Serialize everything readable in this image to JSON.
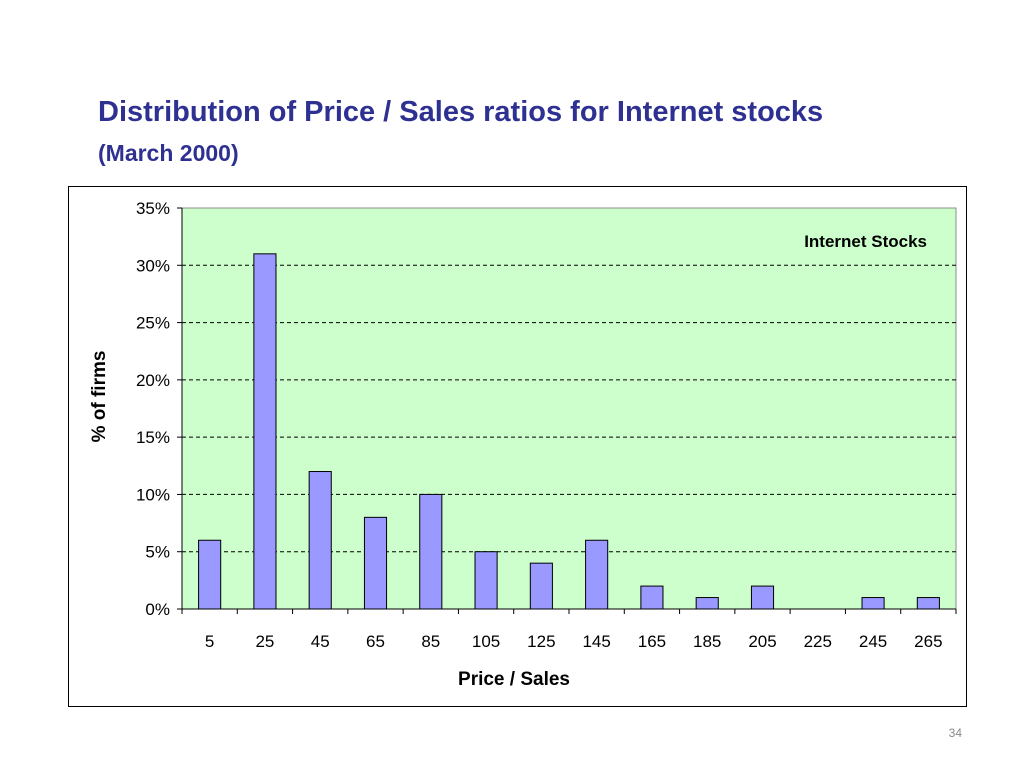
{
  "slide": {
    "title": "Distribution of Price / Sales ratios for Internet stocks",
    "subtitle": "(March 2000)",
    "page_number": "34"
  },
  "colors": {
    "title": "#2e3192",
    "plot_background": "#ccffcc",
    "bar_fill": "#9999ff",
    "bar_stroke": "#000000",
    "grid": "#000000"
  },
  "chart_data": {
    "type": "bar",
    "title": "Internet Stocks",
    "xlabel": "Price / Sales",
    "ylabel": "% of firms",
    "categories": [
      "5",
      "25",
      "45",
      "65",
      "85",
      "105",
      "125",
      "145",
      "165",
      "185",
      "205",
      "225",
      "245",
      "265"
    ],
    "values": [
      6,
      31,
      12,
      8,
      10,
      5,
      4,
      6,
      2,
      1,
      2,
      0,
      1,
      1
    ],
    "value_unit": "%",
    "ylim": [
      0,
      35
    ],
    "yticks": [
      "0%",
      "5%",
      "10%",
      "15%",
      "20%",
      "25%",
      "30%",
      "35%"
    ],
    "grid": "horizontal dashed",
    "legend": "none",
    "annotation_placement": "top-right"
  }
}
